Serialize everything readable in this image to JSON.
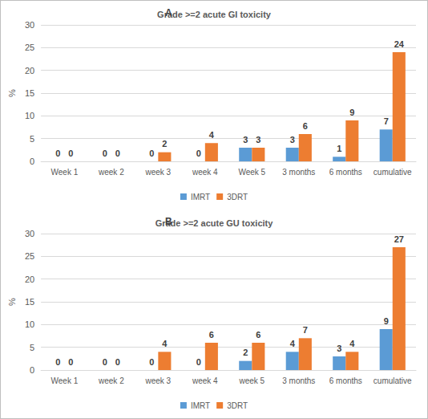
{
  "chart_data": [
    {
      "type": "bar",
      "annotation": "A",
      "title": "Grade >=2 acute GI toxicity",
      "y_label": "%",
      "categories": [
        "Week 1",
        "week 2",
        "week 3",
        "week 4",
        "Week 5",
        "3 months",
        "6 months",
        "cumulative"
      ],
      "series": [
        {
          "name": "IMRT",
          "color": "#5b9bd5",
          "values": [
            0,
            0,
            0,
            0,
            3,
            3,
            1,
            7
          ]
        },
        {
          "name": "3DRT",
          "color": "#ed7d31",
          "values": [
            0,
            0,
            2,
            4,
            3,
            6,
            9,
            24
          ]
        }
      ],
      "ylim": [
        0,
        30
      ],
      "yticks": [
        0,
        5,
        10,
        15,
        20,
        25,
        30
      ],
      "grid": true,
      "legend": "bottom",
      "data_labels": true
    },
    {
      "type": "bar",
      "annotation": "B",
      "title": "Grade >=2 acute GU toxicity",
      "y_label": "%",
      "categories": [
        "Week 1",
        "week 2",
        "week 3",
        "week 4",
        "week 5",
        "3 months",
        "6 months",
        "cumulative"
      ],
      "series": [
        {
          "name": "IMRT",
          "color": "#5b9bd5",
          "values": [
            0,
            0,
            0,
            0,
            2,
            4,
            3,
            9
          ]
        },
        {
          "name": "3DRT",
          "color": "#ed7d31",
          "values": [
            0,
            0,
            4,
            6,
            6,
            7,
            4,
            27
          ]
        }
      ],
      "ylim": [
        0,
        30
      ],
      "yticks": [
        0,
        5,
        10,
        15,
        20,
        25,
        30
      ],
      "grid": true,
      "legend": "bottom",
      "data_labels": true
    }
  ]
}
